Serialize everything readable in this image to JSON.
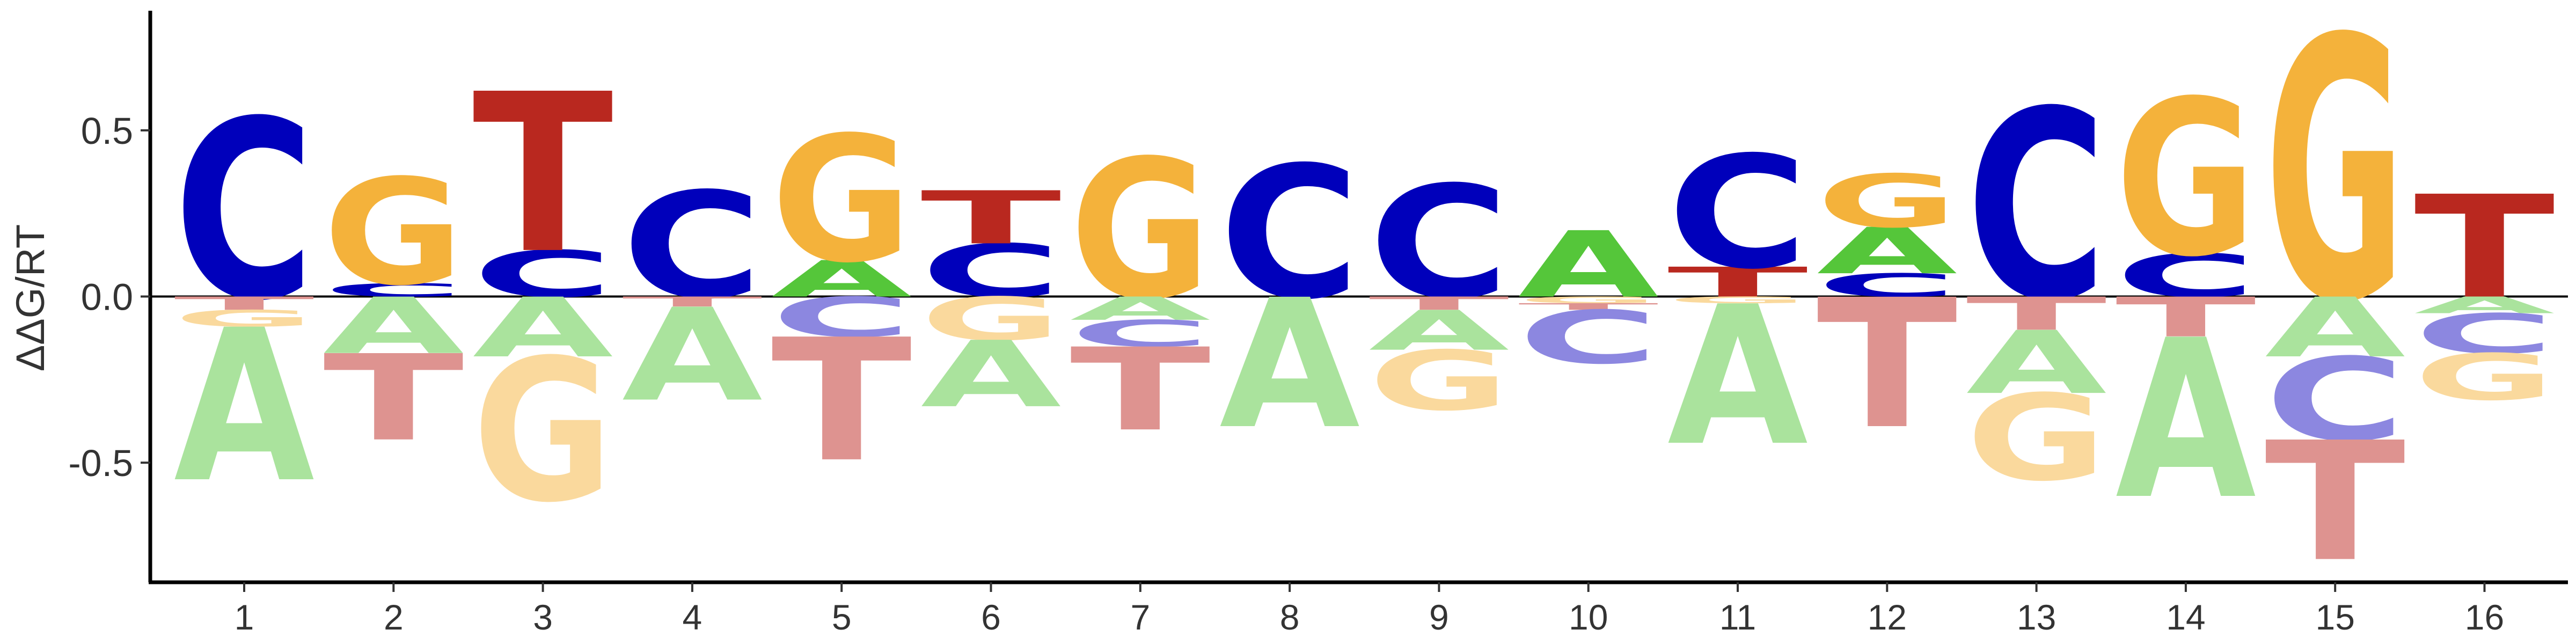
{
  "chart_data": {
    "type": "sequence-logo",
    "ylabel": "ΔΔG/RT",
    "ylim": [
      -0.86,
      0.86
    ],
    "yticks": [
      -0.5,
      0.0,
      0.5
    ],
    "ytick_labels": [
      "-0.5",
      "0.0",
      "0.5"
    ],
    "positions": [
      "1",
      "2",
      "3",
      "4",
      "5",
      "6",
      "7",
      "8",
      "9",
      "10",
      "11",
      "12",
      "13",
      "14",
      "15",
      "16"
    ],
    "colors": {
      "A": {
        "pos": "#55C63A",
        "neg": "#AAE39D"
      },
      "C": {
        "pos": "#0000BB",
        "neg": "#8C87E0"
      },
      "G": {
        "pos": "#F4B23B",
        "neg": "#FAD99D"
      },
      "T": {
        "pos": "#B9281F",
        "neg": "#DE9390"
      }
    },
    "columns": [
      {
        "position": "1",
        "letters": [
          {
            "base": "C",
            "value": 0.54
          },
          {
            "base": "T",
            "value": -0.04
          },
          {
            "base": "G",
            "value": -0.09
          },
          {
            "base": "A",
            "value": -0.55
          }
        ]
      },
      {
        "position": "2",
        "letters": [
          {
            "base": "C",
            "value": 0.04
          },
          {
            "base": "G",
            "value": 0.36
          },
          {
            "base": "A",
            "value": -0.17
          },
          {
            "base": "T",
            "value": -0.43
          }
        ]
      },
      {
        "position": "3",
        "letters": [
          {
            "base": "C",
            "value": 0.14
          },
          {
            "base": "T",
            "value": 0.62
          },
          {
            "base": "A",
            "value": -0.18
          },
          {
            "base": "G",
            "value": -0.61
          }
        ]
      },
      {
        "position": "4",
        "letters": [
          {
            "base": "C",
            "value": 0.32
          },
          {
            "base": "T",
            "value": -0.03
          },
          {
            "base": "A",
            "value": -0.31
          }
        ]
      },
      {
        "position": "5",
        "letters": [
          {
            "base": "A",
            "value": 0.11
          },
          {
            "base": "G",
            "value": 0.49
          },
          {
            "base": "C",
            "value": -0.12
          },
          {
            "base": "T",
            "value": -0.49
          }
        ]
      },
      {
        "position": "6",
        "letters": [
          {
            "base": "C",
            "value": 0.16
          },
          {
            "base": "T",
            "value": 0.32
          },
          {
            "base": "G",
            "value": -0.13
          },
          {
            "base": "A",
            "value": -0.33
          }
        ]
      },
      {
        "position": "7",
        "letters": [
          {
            "base": "G",
            "value": 0.42
          },
          {
            "base": "A",
            "value": -0.07
          },
          {
            "base": "C",
            "value": -0.15
          },
          {
            "base": "T",
            "value": -0.4
          }
        ]
      },
      {
        "position": "8",
        "letters": [
          {
            "base": "C",
            "value": 0.4
          },
          {
            "base": "A",
            "value": -0.39
          }
        ]
      },
      {
        "position": "9",
        "letters": [
          {
            "base": "C",
            "value": 0.34
          },
          {
            "base": "T",
            "value": -0.04
          },
          {
            "base": "A",
            "value": -0.16
          },
          {
            "base": "G",
            "value": -0.34
          }
        ]
      },
      {
        "position": "10",
        "letters": [
          {
            "base": "A",
            "value": 0.2
          },
          {
            "base": "G",
            "value": -0.02
          },
          {
            "base": "T",
            "value": -0.04
          },
          {
            "base": "C",
            "value": -0.2
          }
        ]
      },
      {
        "position": "11",
        "letters": [
          {
            "base": "T",
            "value": 0.09
          },
          {
            "base": "C",
            "value": 0.43
          },
          {
            "base": "G",
            "value": -0.02
          },
          {
            "base": "A",
            "value": -0.44
          }
        ]
      },
      {
        "position": "12",
        "letters": [
          {
            "base": "C",
            "value": 0.07
          },
          {
            "base": "A",
            "value": 0.21
          },
          {
            "base": "G",
            "value": 0.37
          },
          {
            "base": "T",
            "value": -0.39
          }
        ]
      },
      {
        "position": "13",
        "letters": [
          {
            "base": "C",
            "value": 0.57
          },
          {
            "base": "T",
            "value": -0.1
          },
          {
            "base": "A",
            "value": -0.29
          },
          {
            "base": "G",
            "value": -0.55
          }
        ]
      },
      {
        "position": "14",
        "letters": [
          {
            "base": "C",
            "value": 0.13
          },
          {
            "base": "G",
            "value": 0.6
          },
          {
            "base": "T",
            "value": -0.12
          },
          {
            "base": "A",
            "value": -0.6
          }
        ]
      },
      {
        "position": "15",
        "letters": [
          {
            "base": "G",
            "value": 0.79
          },
          {
            "base": "A",
            "value": -0.18
          },
          {
            "base": "C",
            "value": -0.43
          },
          {
            "base": "T",
            "value": -0.79
          }
        ]
      },
      {
        "position": "16",
        "letters": [
          {
            "base": "T",
            "value": 0.31
          },
          {
            "base": "A",
            "value": -0.05
          },
          {
            "base": "C",
            "value": -0.17
          },
          {
            "base": "G",
            "value": -0.31
          }
        ]
      }
    ]
  }
}
